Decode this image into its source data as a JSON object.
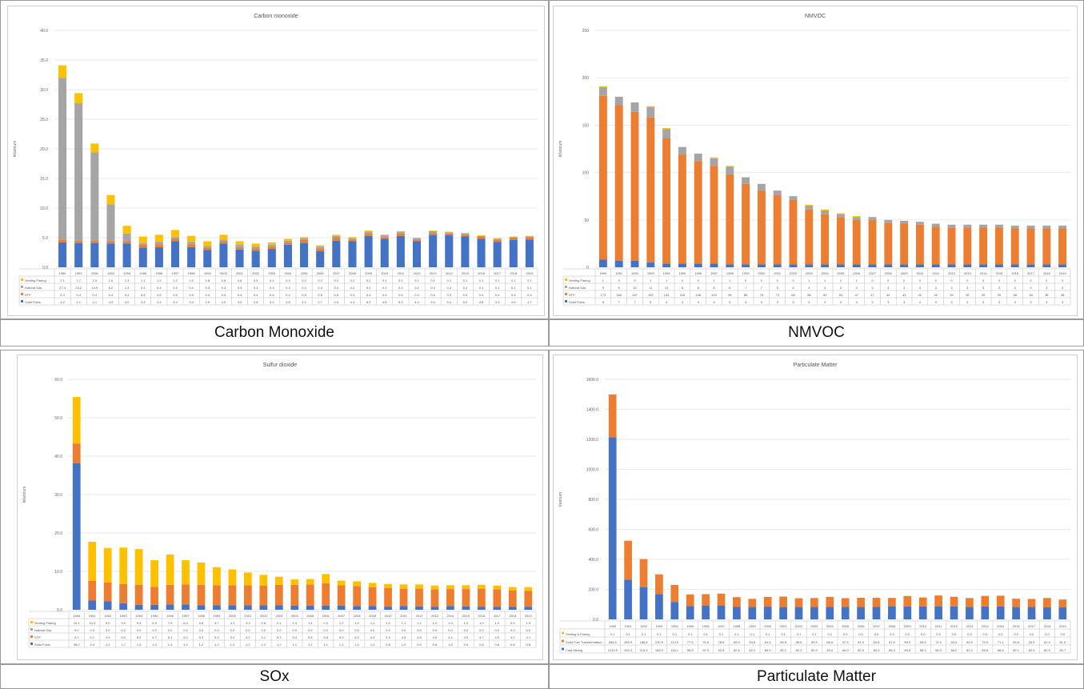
{
  "captions": [
    "Carbon Monoxide",
    "NMVOC",
    "SOx",
    "Particulate Matter"
  ],
  "chart_data": [
    {
      "type": "bar",
      "title": "Carbon monoxide",
      "ylabel": "kt/annum",
      "ylim": [
        0,
        40
      ],
      "yticks": [
        "0.0",
        "5.0",
        "10.0",
        "15.0",
        "20.0",
        "25.0",
        "30.0",
        "35.0",
        "40.0"
      ],
      "stacked": true,
      "categories": [
        "1990",
        "1991",
        "1992",
        "1993",
        "1994",
        "1995",
        "1996",
        "1997",
        "1998",
        "1999",
        "2000",
        "2001",
        "2002",
        "2003",
        "2004",
        "2005",
        "2006",
        "2007",
        "2008",
        "2009",
        "2010",
        "2011",
        "2012",
        "2013",
        "2014",
        "2015",
        "2016",
        "2017",
        "2018",
        "2019"
      ],
      "series": [
        {
          "name": "Solid Fuels",
          "color": "#4472c4",
          "values": [
            4.2,
            4.1,
            4.1,
            4.0,
            4.0,
            3.3,
            3.4,
            4.4,
            3.4,
            2.9,
            4.0,
            3.0,
            2.8,
            3.1,
            3.8,
            4.1,
            2.7,
            4.5,
            4.4,
            5.3,
            4.8,
            5.3,
            4.4,
            5.4,
            5.4,
            5.2,
            4.8,
            4.3,
            4.6,
            4.7
          ]
        },
        {
          "name": "STP",
          "color": "#ed7d31",
          "values": [
            0.4,
            0.4,
            0.4,
            0.4,
            0.4,
            0.5,
            0.5,
            0.4,
            0.5,
            0.4,
            0.4,
            0.4,
            0.4,
            0.4,
            0.4,
            0.5,
            0.5,
            0.5,
            0.3,
            0.4,
            0.3,
            0.4,
            0.3,
            0.4,
            0.3,
            0.3,
            0.4,
            0.4,
            0.4,
            0.4
          ]
        },
        {
          "name": "Natural Gas",
          "color": "#a5a5a5",
          "values": [
            27.4,
            23.2,
            14.9,
            6.2,
            1.3,
            0.3,
            0.4,
            0.3,
            0.4,
            0.3,
            0.3,
            0.4,
            0.3,
            0.3,
            0.3,
            0.3,
            0.3,
            0.3,
            0.2,
            0.3,
            0.3,
            0.3,
            0.2,
            0.3,
            0.2,
            0.2,
            0.1,
            0.1,
            0.1,
            0.1
          ]
        },
        {
          "name": "Venting Flaring",
          "color": "#ffc000",
          "values": [
            2.1,
            1.7,
            1.5,
            1.6,
            1.3,
            1.1,
            1.2,
            1.2,
            1.0,
            0.8,
            0.8,
            0.6,
            0.5,
            0.4,
            0.3,
            0.2,
            0.2,
            0.2,
            0.2,
            0.2,
            0.1,
            0.1,
            0.1,
            0.1,
            0.1,
            0.1,
            0.1,
            0.1,
            0.1,
            0.1
          ]
        }
      ]
    },
    {
      "type": "bar",
      "title": "NMVOC",
      "ylabel": "kt/annum",
      "ylim": [
        0,
        250
      ],
      "yticks": [
        "0",
        "50",
        "100",
        "150",
        "200",
        "250"
      ],
      "stacked": true,
      "categories": [
        "1990",
        "1991",
        "1992",
        "1993",
        "1994",
        "1995",
        "1996",
        "1997",
        "1998",
        "1999",
        "2000",
        "2001",
        "2002",
        "2003",
        "2004",
        "2005",
        "2006",
        "2007",
        "2008",
        "2009",
        "2010",
        "2011",
        "2012",
        "2013",
        "2014",
        "2015",
        "2016",
        "2017",
        "2018",
        "2019"
      ],
      "series": [
        {
          "name": "Solid Fuels",
          "color": "#4472c4",
          "values": [
            8,
            7,
            7,
            5,
            4,
            4,
            4,
            4,
            3,
            3,
            3,
            3,
            3,
            3,
            3,
            3,
            3,
            3,
            3,
            3,
            3,
            3,
            3,
            3,
            3,
            3,
            3,
            3,
            3,
            3
          ]
        },
        {
          "name": "STP",
          "color": "#ed7d31",
          "values": [
            173,
            164,
            157,
            153,
            132,
            115,
            108,
            103,
            95,
            85,
            78,
            73,
            68,
            58,
            53,
            50,
            47,
            47,
            44,
            43,
            42,
            40,
            39,
            39,
            39,
            39,
            38,
            38,
            38,
            38
          ]
        },
        {
          "name": "Natural Gas",
          "color": "#a5a5a5",
          "values": [
            9,
            9,
            10,
            11,
            10,
            8,
            8,
            8,
            8,
            7,
            7,
            5,
            4,
            4,
            4,
            3,
            3,
            3,
            3,
            3,
            3,
            3,
            3,
            3,
            3,
            3,
            3,
            3,
            3,
            3
          ]
        },
        {
          "name": "Venting Flaring",
          "color": "#ffc000",
          "values": [
            1,
            0,
            0,
            1,
            1,
            0,
            0,
            1,
            1,
            0,
            0,
            0,
            0,
            1,
            1,
            1,
            1,
            0,
            0,
            0,
            0,
            0,
            0,
            0,
            0,
            0,
            0,
            0,
            0,
            0
          ]
        }
      ]
    },
    {
      "type": "bar",
      "title": "Sulfur dioxide",
      "ylabel": "kt/annum",
      "ylim": [
        0,
        60
      ],
      "yticks": [
        "0.0",
        "10.0",
        "20.0",
        "30.0",
        "40.0",
        "50.0",
        "60.0"
      ],
      "stacked": true,
      "categories": [
        "1990",
        "1991",
        "1992",
        "1993",
        "1994",
        "1995",
        "1996",
        "1997",
        "1998",
        "1999",
        "2000",
        "2001",
        "2002",
        "2003",
        "2004",
        "2005",
        "2006",
        "2007",
        "2008",
        "2009",
        "2010",
        "2011",
        "2012",
        "2013",
        "2014",
        "2015",
        "2016",
        "2017",
        "2018",
        "2019"
      ],
      "series": [
        {
          "name": "Solid Fuels",
          "color": "#4472c4",
          "values": [
            38.2,
            2.4,
            2.2,
            1.7,
            1.3,
            1.3,
            1.4,
            1.4,
            1.2,
            1.2,
            1.2,
            1.2,
            1.2,
            1.2,
            1.1,
            1.1,
            1.1,
            1.1,
            1.0,
            1.0,
            0.8,
            1.0,
            0.9,
            0.8,
            1.0,
            0.9,
            0.8,
            0.8,
            0.8,
            0.8
          ]
        },
        {
          "name": "STP",
          "color": "#ed7d31",
          "values": [
            5.1,
            5.1,
            4.9,
            5.0,
            5.2,
            4.7,
            5.1,
            5.2,
            5.3,
            5.2,
            5.2,
            5.2,
            5.1,
            5.3,
            5.4,
            5.5,
            5.8,
            5.3,
            5.2,
            4.9,
            4.9,
            4.5,
            4.6,
            4.5,
            4.4,
            4.5,
            4.7,
            4.5,
            4.2,
            4.1
          ]
        },
        {
          "name": "Natural Gas",
          "color": "#a5a5a5",
          "values": [
            0.0,
            0.0,
            0.0,
            0.0,
            0.0,
            0.0,
            0.0,
            0.0,
            0.0,
            0.0,
            0.0,
            0.0,
            0.0,
            0.0,
            0.0,
            0.0,
            0.0,
            0.0,
            0.0,
            0.0,
            0.0,
            0.0,
            0.0,
            0.0,
            0.0,
            0.0,
            0.0,
            0.0,
            0.0,
            0.0
          ]
        },
        {
          "name": "Venting Flaring",
          "color": "#ffc000",
          "values": [
            12.1,
            10.2,
            9.0,
            9.5,
            9.3,
            6.9,
            7.9,
            6.3,
            5.8,
            4.7,
            4.1,
            3.3,
            2.8,
            2.1,
            1.4,
            1.4,
            2.4,
            1.2,
            1.2,
            1.1,
            1.0,
            1.1,
            1.1,
            1.0,
            1.0,
            1.0,
            1.0,
            1.0,
            0.9,
            1.0
          ]
        }
      ]
    },
    {
      "type": "bar",
      "title": "Particulate Matter",
      "ylabel": "t/annum",
      "ylim": [
        0,
        1600
      ],
      "yticks": [
        "0.0",
        "200.0",
        "400.0",
        "600.0",
        "800.0",
        "1000.0",
        "1200.0",
        "1400.0",
        "1600.0"
      ],
      "stacked": true,
      "categories": [
        "1990",
        "1991",
        "1992",
        "1993",
        "1994",
        "1995",
        "1996",
        "1997",
        "1998",
        "1999",
        "2000",
        "2001",
        "2002",
        "2003",
        "2004",
        "2005",
        "2006",
        "2007",
        "2008",
        "2009",
        "2010",
        "2011",
        "2012",
        "2013",
        "2014",
        "2015",
        "2016",
        "2017",
        "2018",
        "2019"
      ],
      "series": [
        {
          "name": "Coal Mining",
          "color": "#4472c4",
          "values": [
            1213.9,
            264.4,
            213.3,
            168.9,
            116.1,
            88.8,
            92.3,
            92.8,
            82.6,
            82.2,
            85.0,
            82.1,
            82.2,
            82.3,
            83.0,
            84.0,
            82.3,
            82.9,
            85.3,
            85.8,
            86.4,
            85.3,
            86.0,
            82.3,
            85.8,
            86.6,
            82.1,
            82.3,
            80.3,
            80.7
          ]
        },
        {
          "name": "Solid Fuel Transformation",
          "color": "#ed7d31",
          "values": [
            284.6,
            259.9,
            188.8,
            130.9,
            113.5,
            77.5,
            75.8,
            78.8,
            65.5,
            54.8,
            64.6,
            69.8,
            58.6,
            59.9,
            66.6,
            57.5,
            61.9,
            60.8,
            57.6,
            69.9,
            59.6,
            74.0,
            64.5,
            59.8,
            70.5,
            71.1,
            55.8,
            53.9,
            61.9,
            51.5
          ]
        },
        {
          "name": "Venting & Flaring",
          "color": "#ffc000",
          "values": [
            0.1,
            0.1,
            0.1,
            0.1,
            0.1,
            0.1,
            0.1,
            0.1,
            0.1,
            0.1,
            0.1,
            0.1,
            0.1,
            0.1,
            0.1,
            0.0,
            0.0,
            0.0,
            0.0,
            0.0,
            0.0,
            0.0,
            0.0,
            0.0,
            0.0,
            0.0,
            0.0,
            0.0,
            0.0,
            0.0
          ]
        }
      ]
    }
  ]
}
